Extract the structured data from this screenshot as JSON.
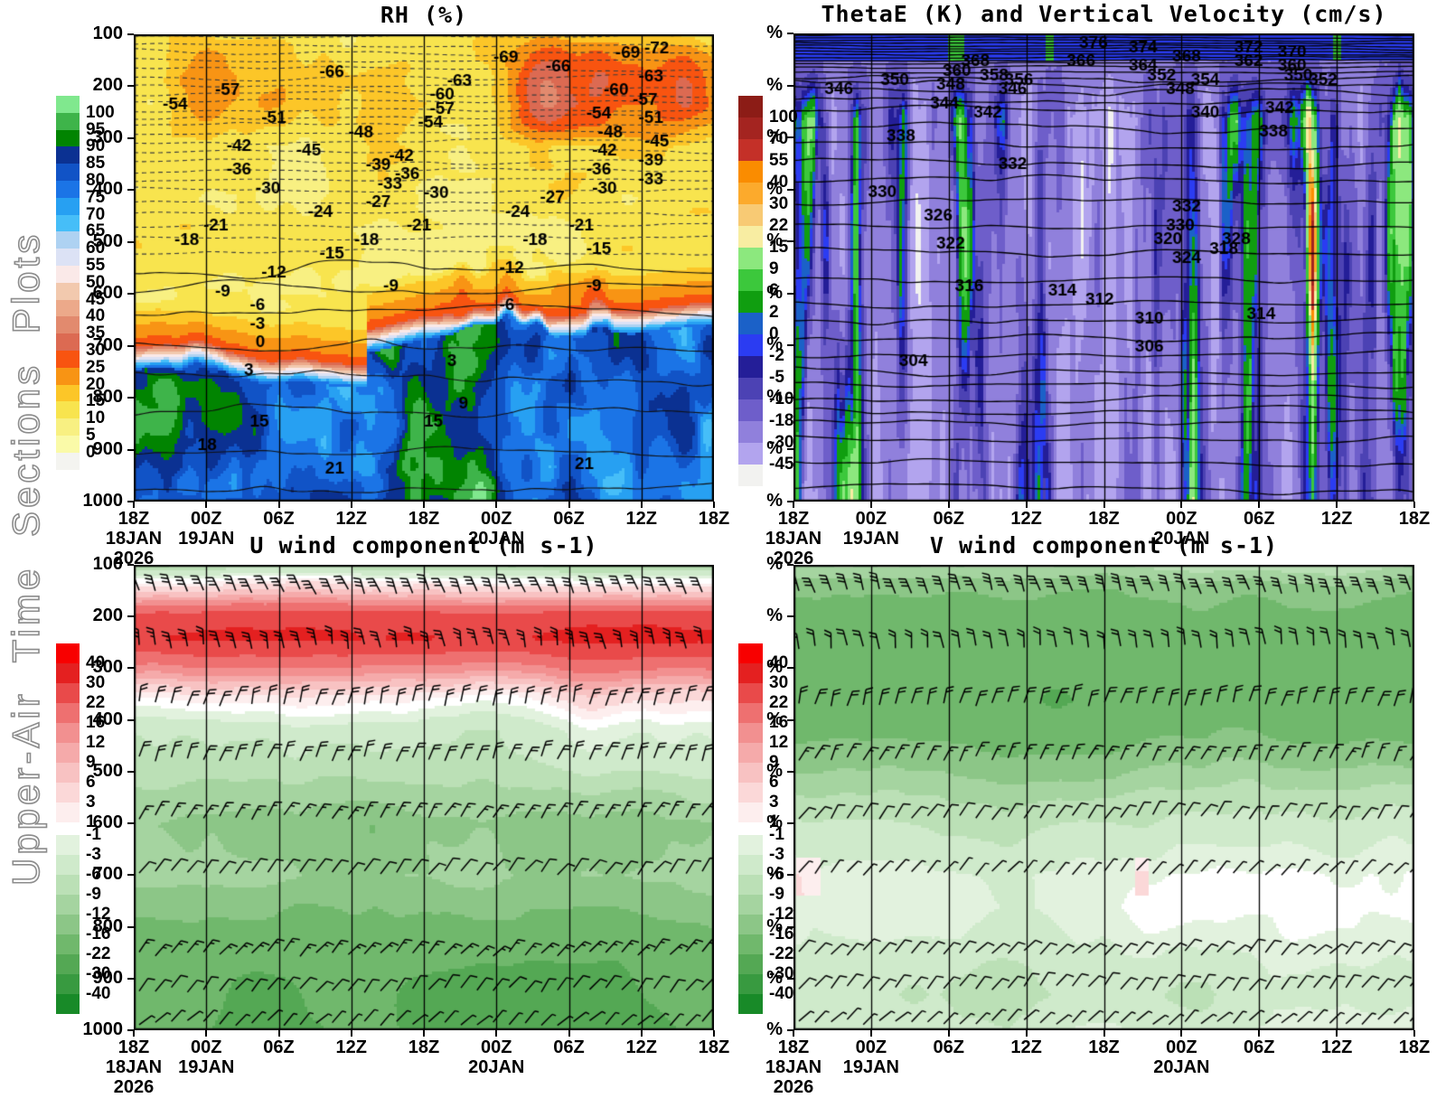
{
  "sidebar": {
    "title": "Upper-Air Time Sections Plots"
  },
  "chart_data": [
    {
      "id": "rh",
      "type": "contour-heatmap",
      "title": "RH (%)",
      "field": "rh",
      "ylim": [
        100,
        1000
      ],
      "y_ticks": [
        "100",
        "200",
        "300",
        "400",
        "500",
        "600",
        "700",
        "800",
        "900",
        "1000"
      ],
      "x_ticks": [
        {
          "time": "18Z",
          "date": "18JAN",
          "year": "2026"
        },
        {
          "time": "00Z",
          "date": "19JAN"
        },
        {
          "time": "06Z"
        },
        {
          "time": "12Z"
        },
        {
          "time": "18Z"
        },
        {
          "time": "00Z",
          "date": "20JAN"
        },
        {
          "time": "06Z"
        },
        {
          "time": "12Z"
        },
        {
          "time": "18Z"
        }
      ],
      "colorbar": {
        "labels": [
          "100",
          "95",
          "90",
          "85",
          "80",
          "75",
          "70",
          "65",
          "60",
          "55",
          "50",
          "45",
          "40",
          "35",
          "30",
          "25",
          "20",
          "15",
          "10",
          "5",
          "0"
        ],
        "colors": [
          "#80e88e",
          "#3eb44a",
          "#018401",
          "#0b3192",
          "#1153c6",
          "#1b74e6",
          "#27a0f2",
          "#46bef8",
          "#aed2f2",
          "#dce2f5",
          "#fae9e8",
          "#f2c9ae",
          "#eca98a",
          "#e28a6e",
          "#dc6a52",
          "#f85410",
          "#f89414",
          "#fcc628",
          "#f8e44e",
          "#f8f082",
          "#fafaa8",
          "#f4f4f0"
        ]
      },
      "contour_levels": {
        "start": -72,
        "end": 21,
        "step": 3
      },
      "contour_labels": [
        [
          -72,
          88,
          3
        ],
        [
          -69,
          62,
          5
        ],
        [
          -69,
          83,
          4
        ],
        [
          -66,
          32,
          8
        ],
        [
          -66,
          71,
          7
        ],
        [
          -63,
          54,
          10
        ],
        [
          -63,
          87,
          9
        ],
        [
          -60,
          51,
          13
        ],
        [
          -60,
          81,
          12
        ],
        [
          -57,
          14,
          12
        ],
        [
          -57,
          51,
          16
        ],
        [
          -57,
          86,
          14
        ],
        [
          -54,
          5,
          15
        ],
        [
          -54,
          49,
          19
        ],
        [
          -54,
          78,
          17
        ],
        [
          -51,
          22,
          18
        ],
        [
          -51,
          87,
          18
        ],
        [
          -48,
          37,
          21
        ],
        [
          -48,
          80,
          21
        ],
        [
          -45,
          28,
          25
        ],
        [
          -45,
          88,
          23
        ],
        [
          -42,
          16,
          24
        ],
        [
          -42,
          44,
          26
        ],
        [
          -42,
          79,
          25
        ],
        [
          -39,
          40,
          28
        ],
        [
          -39,
          87,
          27
        ],
        [
          -36,
          16,
          29
        ],
        [
          -36,
          45,
          30
        ],
        [
          -36,
          78,
          29
        ],
        [
          -33,
          42,
          32
        ],
        [
          -33,
          87,
          31
        ],
        [
          -30,
          21,
          33
        ],
        [
          -30,
          50,
          34
        ],
        [
          -30,
          79,
          33
        ],
        [
          -27,
          40,
          36
        ],
        [
          -27,
          70,
          35
        ],
        [
          -24,
          30,
          38
        ],
        [
          -24,
          64,
          38
        ],
        [
          -21,
          12,
          41
        ],
        [
          -21,
          47,
          41
        ],
        [
          -21,
          75,
          41
        ],
        [
          -18,
          7,
          44
        ],
        [
          -18,
          38,
          44
        ],
        [
          -18,
          67,
          44
        ],
        [
          -15,
          32,
          47
        ],
        [
          -15,
          78,
          46
        ],
        [
          -12,
          22,
          51
        ],
        [
          -12,
          63,
          50
        ],
        [
          -9,
          14,
          55
        ],
        [
          -9,
          43,
          54
        ],
        [
          -9,
          78,
          54
        ],
        [
          -6,
          20,
          58
        ],
        [
          -6,
          63,
          58
        ],
        [
          -3,
          20,
          62
        ],
        [
          0,
          21,
          66
        ],
        [
          3,
          19,
          72
        ],
        [
          3,
          54,
          70
        ],
        [
          9,
          56,
          79
        ],
        [
          15,
          20,
          83
        ],
        [
          15,
          50,
          83
        ],
        [
          18,
          11,
          88
        ],
        [
          21,
          33,
          93
        ],
        [
          21,
          76,
          92
        ]
      ]
    },
    {
      "id": "thetae",
      "type": "contour-heatmap",
      "title": "ThetaE (K) and Vertical Velocity (cm/s)",
      "field": "thetae",
      "ylim": [
        100,
        1000
      ],
      "y_ticks": [
        "%",
        "%",
        "%",
        "%",
        "%",
        "%",
        "%",
        "%",
        "%",
        "%"
      ],
      "x_ticks": [
        {
          "time": "18Z",
          "date": "18JAN",
          "year": "2026"
        },
        {
          "time": "00Z",
          "date": "19JAN"
        },
        {
          "time": "06Z"
        },
        {
          "time": "12Z"
        },
        {
          "time": "18Z"
        },
        {
          "time": "00Z",
          "date": "20JAN"
        },
        {
          "time": "06Z"
        },
        {
          "time": "12Z"
        },
        {
          "time": "18Z"
        }
      ],
      "colorbar": {
        "labels": [
          "100",
          "70",
          "55",
          "40",
          "30",
          "22",
          "15",
          "9",
          "6",
          "2",
          "0",
          "-2",
          "-5",
          "-10",
          "-18",
          "-30",
          "-45"
        ],
        "colors": [
          "#8c1c16",
          "#a42420",
          "#c43028",
          "#fa8c00",
          "#fcaa2c",
          "#f8ca74",
          "#f8eda2",
          "#8ce87e",
          "#3cc83c",
          "#109e10",
          "#1b61c8",
          "#2b3cf2",
          "#241e98",
          "#4c42b4",
          "#6e5eca",
          "#9080dc",
          "#b2a4ee",
          "#f2f2f0"
        ]
      },
      "contour_levels": {
        "start": 304,
        "end": 376,
        "step": 2
      },
      "contour_labels": [
        [
          376,
          46,
          2
        ],
        [
          374,
          54,
          3
        ],
        [
          372,
          71,
          3
        ],
        [
          370,
          78,
          4
        ],
        [
          368,
          27,
          6
        ],
        [
          368,
          61,
          5
        ],
        [
          366,
          44,
          6
        ],
        [
          364,
          54,
          7
        ],
        [
          362,
          71,
          6
        ],
        [
          360,
          24,
          8
        ],
        [
          360,
          78,
          7
        ],
        [
          358,
          30,
          9
        ],
        [
          356,
          34,
          10
        ],
        [
          354,
          64,
          10
        ],
        [
          352,
          57,
          9
        ],
        [
          352,
          83,
          10
        ],
        [
          350,
          14,
          10
        ],
        [
          350,
          79,
          9
        ],
        [
          348,
          23,
          11
        ],
        [
          348,
          60,
          12
        ],
        [
          346,
          5,
          12
        ],
        [
          346,
          33,
          12
        ],
        [
          344,
          22,
          15
        ],
        [
          342,
          29,
          17
        ],
        [
          342,
          76,
          16
        ],
        [
          340,
          64,
          17
        ],
        [
          338,
          15,
          22
        ],
        [
          338,
          75,
          21
        ],
        [
          332,
          33,
          28
        ],
        [
          332,
          61,
          37
        ],
        [
          330,
          12,
          34
        ],
        [
          330,
          60,
          41
        ],
        [
          328,
          69,
          44
        ],
        [
          326,
          21,
          39
        ],
        [
          324,
          61,
          48
        ],
        [
          322,
          23,
          45
        ],
        [
          320,
          58,
          44
        ],
        [
          318,
          67,
          46
        ],
        [
          316,
          26,
          54
        ],
        [
          314,
          41,
          55
        ],
        [
          314,
          73,
          60
        ],
        [
          312,
          47,
          57
        ],
        [
          310,
          55,
          61
        ],
        [
          306,
          55,
          67
        ],
        [
          304,
          17,
          70
        ]
      ]
    },
    {
      "id": "uwind",
      "type": "contour-heatmap",
      "title": "U wind component (m s-1)",
      "field": "uwind",
      "ylim": [
        100,
        1000
      ],
      "y_ticks": [
        "100",
        "200",
        "300",
        "400",
        "500",
        "600",
        "700",
        "800",
        "900",
        "1000"
      ],
      "x_ticks": [
        {
          "time": "18Z",
          "date": "18JAN",
          "year": "2026"
        },
        {
          "time": "00Z",
          "date": "19JAN"
        },
        {
          "time": "06Z"
        },
        {
          "time": "12Z"
        },
        {
          "time": "18Z"
        },
        {
          "time": "00Z",
          "date": "20JAN"
        },
        {
          "time": "06Z"
        },
        {
          "time": "12Z"
        },
        {
          "time": "18Z"
        }
      ],
      "colorbar": {
        "labels": [
          "40",
          "30",
          "22",
          "16",
          "12",
          "9",
          "6",
          "3",
          "1",
          "-1",
          "-3",
          "-6",
          "-9",
          "-12",
          "-16",
          "-22",
          "-30",
          "-40"
        ],
        "colors": [
          "#f80000",
          "#e42020",
          "#e94a4a",
          "#ee7070",
          "#f29090",
          "#f5aaaa",
          "#f8c2c2",
          "#fbd8d8",
          "#fdeeee",
          "#e2f2de",
          "#cfeacb",
          "#bbe0b6",
          "#a5d4a0",
          "#8cc687",
          "#70b86c",
          "#54a854",
          "#389a40",
          "#188a28"
        ],
        "gap_after": 9
      },
      "barb_rows": [
        {
          "p": 152,
          "angle": -112,
          "full": 3,
          "half": 0,
          "side": -1
        },
        {
          "p": 258,
          "angle": -100,
          "full": 2,
          "half": 1,
          "side": -1
        },
        {
          "p": 368,
          "angle": -75,
          "full": 2,
          "half": 0,
          "side": 1
        },
        {
          "p": 475,
          "angle": -68,
          "full": 2,
          "half": 0,
          "side": 1
        },
        {
          "p": 588,
          "angle": -58,
          "full": 1,
          "half": 1,
          "side": 1
        },
        {
          "p": 695,
          "angle": -52,
          "full": 1,
          "half": 0,
          "side": 1
        },
        {
          "p": 852,
          "angle": -48,
          "full": 1,
          "half": 1,
          "side": 1
        },
        {
          "p": 922,
          "angle": -52,
          "full": 1,
          "half": 0,
          "side": 1
        },
        {
          "p": 986,
          "angle": -44,
          "full": 0,
          "half": 2,
          "side": 1
        }
      ]
    },
    {
      "id": "vwind",
      "type": "contour-heatmap",
      "title": "V wind component (m s-1)",
      "field": "vwind",
      "ylim": [
        100,
        1000
      ],
      "y_ticks": [
        "%",
        "%",
        "%",
        "%",
        "%",
        "%",
        "%",
        "%",
        "%",
        "%"
      ],
      "x_ticks": [
        {
          "time": "18Z",
          "date": "18JAN",
          "year": "2026"
        },
        {
          "time": "00Z",
          "date": "19JAN"
        },
        {
          "time": "06Z"
        },
        {
          "time": "12Z"
        },
        {
          "time": "18Z"
        },
        {
          "time": "00Z",
          "date": "20JAN"
        },
        {
          "time": "06Z"
        },
        {
          "time": "12Z"
        },
        {
          "time": "18Z"
        }
      ],
      "colorbar": {
        "labels": [
          "40",
          "30",
          "22",
          "16",
          "12",
          "9",
          "6",
          "3",
          "1",
          "-1",
          "-3",
          "-6",
          "-9",
          "-12",
          "-16",
          "-22",
          "-30",
          "-40"
        ],
        "colors": [
          "#f80000",
          "#e42020",
          "#e94a4a",
          "#ee7070",
          "#f29090",
          "#f5aaaa",
          "#f8c2c2",
          "#fbd8d8",
          "#fdeeee",
          "#e2f2de",
          "#cfeacb",
          "#bbe0b6",
          "#a5d4a0",
          "#8cc687",
          "#70b86c",
          "#54a854",
          "#389a40",
          "#188a28"
        ],
        "gap_after": 9
      },
      "barb_rows": [
        {
          "p": 152,
          "angle": -108,
          "full": 3,
          "half": 0,
          "side": -1
        },
        {
          "p": 258,
          "angle": -98,
          "full": 2,
          "half": 0,
          "side": -1
        },
        {
          "p": 368,
          "angle": -74,
          "full": 2,
          "half": 0,
          "side": 1
        },
        {
          "p": 475,
          "angle": -64,
          "full": 1,
          "half": 1,
          "side": 1
        },
        {
          "p": 588,
          "angle": -56,
          "full": 1,
          "half": 0,
          "side": 1
        },
        {
          "p": 695,
          "angle": -50,
          "full": 0,
          "half": 2,
          "side": 1
        },
        {
          "p": 850,
          "angle": -46,
          "full": 1,
          "half": 0,
          "side": 1
        },
        {
          "p": 918,
          "angle": -52,
          "full": 1,
          "half": 0,
          "side": 1
        },
        {
          "p": 984,
          "angle": -44,
          "full": 0,
          "half": 2,
          "side": 1
        }
      ]
    }
  ]
}
